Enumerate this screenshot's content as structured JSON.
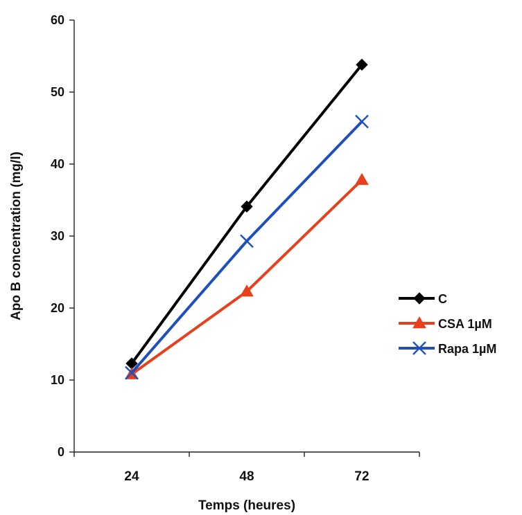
{
  "chart_data": {
    "type": "line",
    "title": "",
    "xlabel": "Temps (heures)",
    "ylabel": "Apo B concentration (mg/l)",
    "categories": [
      "24",
      "48",
      "72"
    ],
    "ylim": [
      0,
      60
    ],
    "yticks": [
      0,
      10,
      20,
      30,
      40,
      50,
      60
    ],
    "grid": false,
    "legend_position": "right",
    "series": [
      {
        "name": "C",
        "values": [
          12.3,
          34.1,
          53.8
        ],
        "color": "#000000",
        "marker": "diamond"
      },
      {
        "name": "CSA 1µM",
        "values": [
          10.8,
          22.3,
          37.8
        ],
        "color": "#e8401c",
        "marker": "triangle"
      },
      {
        "name": "Rapa 1µM",
        "values": [
          11.0,
          29.3,
          45.9
        ],
        "color": "#1f4fbf",
        "marker": "x"
      }
    ]
  }
}
